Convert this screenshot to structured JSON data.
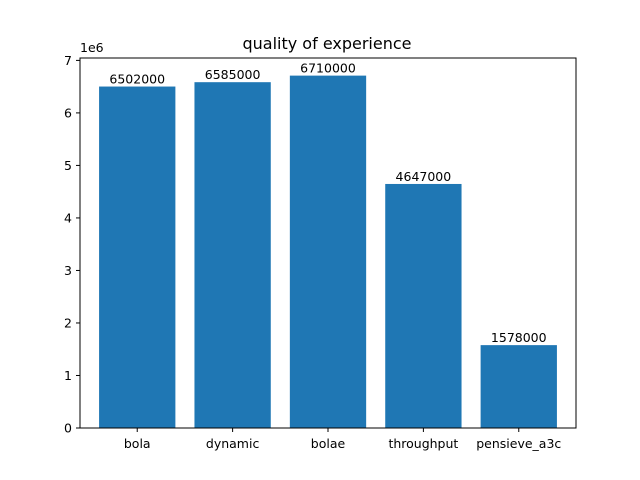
{
  "chart_data": {
    "type": "bar",
    "title": "quality of experience",
    "xlabel": "",
    "ylabel": "",
    "y_offset_label": "1e6",
    "y_scale": 1000000,
    "categories": [
      "bola",
      "dynamic",
      "bolae",
      "throughput",
      "pensieve_a3c"
    ],
    "values": [
      6502000,
      6585000,
      6710000,
      4647000,
      1578000
    ],
    "data_labels": [
      "6502000",
      "6585000",
      "6710000",
      "4647000",
      "1578000"
    ],
    "y_ticks": [
      0,
      1,
      2,
      3,
      4,
      5,
      6,
      7
    ],
    "ylim": [
      0,
      7045500
    ],
    "bar_color": "#1f77b4",
    "grid": false,
    "legend": "none"
  }
}
